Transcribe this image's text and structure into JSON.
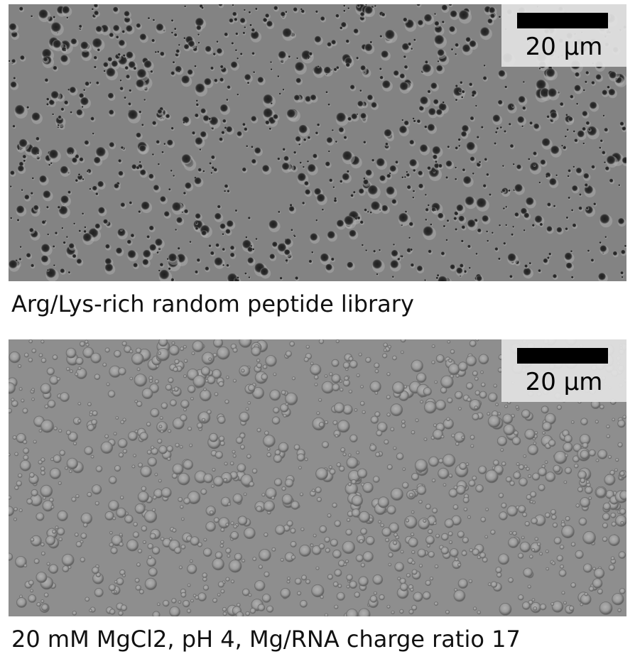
{
  "panels": [
    {
      "scale_bar_label": "20 µm",
      "caption": "Arg/Lys-rich random peptide library",
      "colors": {
        "background": "#838383",
        "droplet": "#2b2b2b",
        "halo": "#b3b3b3"
      }
    },
    {
      "scale_bar_label": "20 µm",
      "caption": "20 mM MgCl2, pH 4, Mg/RNA charge ratio 17",
      "colors": {
        "background": "#8e8e8e",
        "droplet": "#9c9c9c",
        "edge": "#6e6e6e"
      }
    }
  ]
}
